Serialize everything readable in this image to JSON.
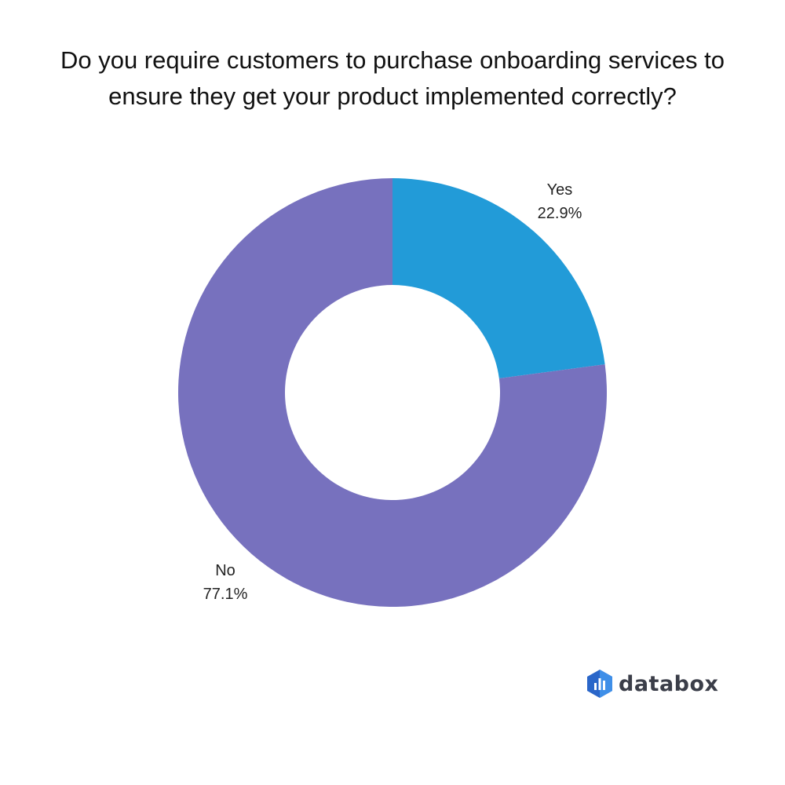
{
  "chart_data": {
    "type": "pie",
    "subtype": "donut",
    "title_lines": [
      "Do you require customers to purchase onboarding services to",
      "ensure they get your product implemented correctly?"
    ],
    "slices": [
      {
        "label": "Yes",
        "value": 22.9,
        "value_label": "22.9%",
        "color": "#229bd8"
      },
      {
        "label": "No",
        "value": 77.1,
        "value_label": "77.1%",
        "color": "#7771be"
      }
    ]
  },
  "brand": {
    "logo_text": "databox",
    "logo_icon": "databox-logo-icon",
    "colors": {
      "dark": "#1e3f96",
      "mid": "#2a66c9",
      "light": "#3f8fe8"
    }
  }
}
